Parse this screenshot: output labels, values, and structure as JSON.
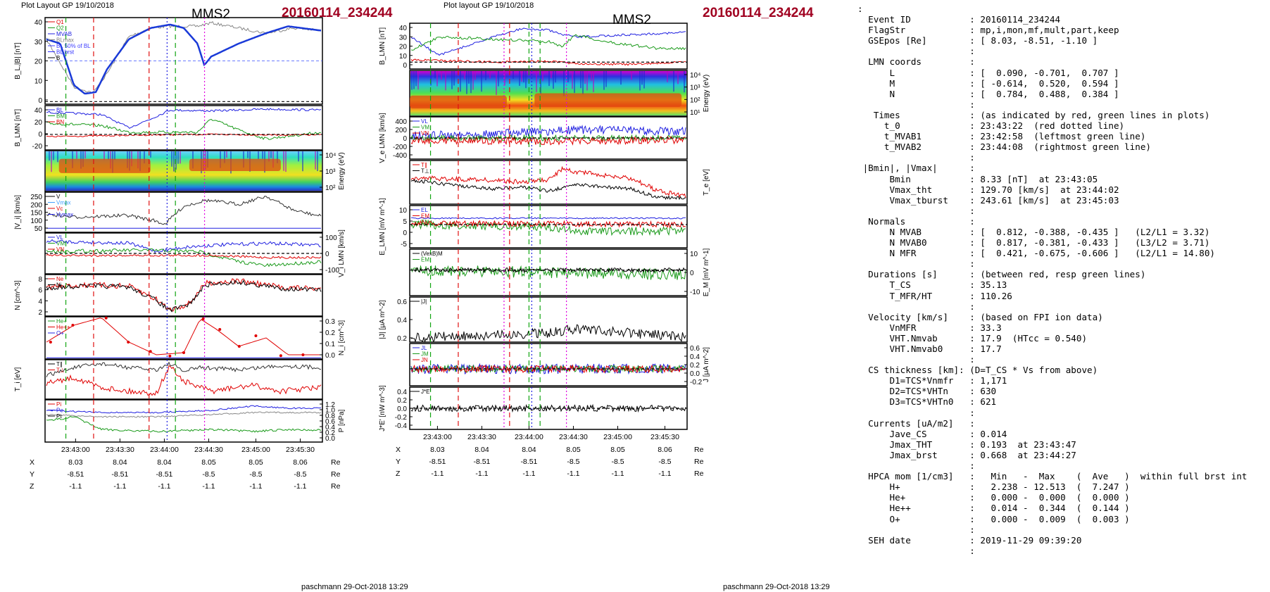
{
  "left": {
    "header": "Plot Layout GP 19/10/2018",
    "spacecraft": "MMS2",
    "event": "20160114_234244",
    "footer": "paschmann 29-Oct-2018 13:29",
    "panels": [
      {
        "id": "b_mag",
        "ylabel": "B_L,|B| [nT]",
        "ticks": [
          "40",
          "30",
          "20",
          "10",
          "0"
        ],
        "legend": [
          "Q1",
          "Q2",
          "MVAB",
          "BLmax",
          "BL 50% of BL",
          "BL brst",
          "B"
        ]
      },
      {
        "id": "b_lmn",
        "ylabel": "B_LMN [nT]",
        "ticks": [
          "40",
          "20",
          "0",
          "-20"
        ],
        "legend": [
          "BL",
          "BM",
          "BN"
        ]
      },
      {
        "id": "spec",
        "ylabel": "Energy (eV)",
        "ticks": [
          "10^4",
          "10^3",
          "10^2"
        ]
      },
      {
        "id": "vi_abs",
        "ylabel": "|V_i| [km/s]",
        "ticks": [
          "250",
          "200",
          "150",
          "100",
          "50"
        ],
        "legend": [
          "V",
          "Vmax",
          "Vc",
          "Vymax"
        ]
      },
      {
        "id": "vi_lmn",
        "ylabel": "V_i LMN [km/s]",
        "ticks": [
          "100",
          "0",
          "-100"
        ],
        "legend": [
          "VL",
          "VM",
          "VN"
        ]
      },
      {
        "id": "n",
        "ylabel": "N [cm^-3]",
        "ticks": [
          "8",
          "6",
          "4",
          "2"
        ],
        "legend": [
          "Ne",
          "Ni"
        ]
      },
      {
        "id": "ni",
        "ylabel": "N_i [cm^-3]",
        "ticks": [
          "0.3",
          "0.2",
          "0.1",
          "0.0"
        ],
        "legend": [
          "He+",
          "He++",
          "O+"
        ]
      },
      {
        "id": "ti",
        "ylabel": "T_i [eV]",
        "legend": [
          "T∥",
          "T⊥"
        ]
      },
      {
        "id": "p",
        "ylabel": "P [nPa]",
        "ticks": [
          "1.2",
          "1.0",
          "0.8",
          "0.6",
          "0.4",
          "0.2",
          "0.0"
        ],
        "legend": [
          "Pi",
          "Pe",
          "Pt"
        ]
      }
    ],
    "time_ticks": [
      "23:43:00",
      "23:43:30",
      "23:44:00",
      "23:44:30",
      "23:45:00",
      "23:45:30"
    ],
    "pos": {
      "X": [
        "8.03",
        "8.04",
        "8.04",
        "8.05",
        "8.05",
        "8.06"
      ],
      "Y": [
        "-8.51",
        "-8.51",
        "-8.51",
        "-8.5",
        "-8.5",
        "-8.5"
      ],
      "Z": [
        "-1.1",
        "-1.1",
        "-1.1",
        "-1.1",
        "-1.1",
        "-1.1"
      ],
      "unit": "Re"
    }
  },
  "mid": {
    "header": "Plot layout GP 19/10/2018",
    "spacecraft": "MMS2",
    "event": "20160114_234244",
    "footer": "paschmann 29-Oct-2018 13:29",
    "panels": [
      {
        "id": "b",
        "ylabel": "B_LMN [nT]",
        "ticks": [
          "40",
          "30",
          "20",
          "10",
          "0"
        ]
      },
      {
        "id": "spec",
        "ylabel": "Energy (eV)",
        "ticks": [
          "10^4",
          "10^3",
          "10^2",
          "10^1"
        ]
      },
      {
        "id": "ve",
        "ylabel": "V_e LMN [km/s]",
        "ticks": [
          "400",
          "200",
          "0",
          "-200",
          "-400"
        ],
        "legend": [
          "VL",
          "VM",
          "VN"
        ]
      },
      {
        "id": "te",
        "ylabel": "T_e [eV]",
        "legend": [
          "T∥",
          "T⊥"
        ]
      },
      {
        "id": "e",
        "ylabel": "E_LMN [mV m^-1]",
        "ticks": [
          "10",
          "5",
          "0",
          "-5"
        ],
        "legend": [
          "EL",
          "EM",
          "EN"
        ]
      },
      {
        "id": "em",
        "ylabel": "E_M [mV m^-1]",
        "ticks": [
          "10",
          "0",
          "-10"
        ],
        "legend": [
          "(VexB)M",
          "EM"
        ]
      },
      {
        "id": "j",
        "ylabel": "|J| [μA m^-2]",
        "ticks": [
          "0.6",
          "0.4",
          "0.2"
        ],
        "legend": [
          "|J|"
        ]
      },
      {
        "id": "jlmn",
        "ylabel": "J [μA m^-2]",
        "ticks": [
          "0.6",
          "0.4",
          "0.2",
          "0.0",
          "-0.2"
        ],
        "legend": [
          "JL",
          "JM",
          "JN"
        ]
      },
      {
        "id": "je",
        "ylabel": "J*E' [nW m^-3]",
        "ticks": [
          "0.4",
          "0.2",
          "0.0",
          "-0.2",
          "-0.4"
        ],
        "legend": [
          "J*E'"
        ]
      }
    ],
    "time_ticks": [
      "23:43:00",
      "23:43:30",
      "23:44:00",
      "23:44:30",
      "23:45:00",
      "23:45:30"
    ],
    "pos": {
      "X": [
        "8.03",
        "8.04",
        "8.04",
        "8.05",
        "8.05",
        "8.06"
      ],
      "Y": [
        "-8.51",
        "-8.51",
        "-8.51",
        "-8.5",
        "-8.5",
        "-8.5"
      ],
      "Z": [
        "-1.1",
        "-1.1",
        "-1.1",
        "-1.1",
        "-1.1",
        "-1.1"
      ],
      "unit": "Re"
    }
  },
  "info_lines": [
    ":",
    "  Event ID           : 20160114_234244",
    "  FlagStr            : mp,i,mon,mf,mult,part,keep",
    "  GSEpos [Re]        : [ 8.03, -8.51, -1.10 ]",
    "                     :",
    "  LMN coords         :",
    "      L              : [  0.090, -0.701,  0.707 ]",
    "      M              : [ -0.614,  0.520,  0.594 ]",
    "      N              : [  0.784,  0.488,  0.384 ]",
    "                     :",
    "   Times             : (as indicated by red, green lines in plots)",
    "     t_0             : 23:43:22  (red dotted line)",
    "     t_MVAB1         : 23:42:58  (leftmost green line)",
    "     t_MVAB2         : 23:44:08  (rightmost green line)",
    "                     :",
    " |Bmin|, |Vmax|      :",
    "      Bmin           : 8.33 [nT]  at 23:43:05",
    "      Vmax_tht       : 129.70 [km/s]  at 23:44:02",
    "      Vmax_tburst    : 243.61 [km/s]  at 23:45:03",
    "                     :",
    "  Normals            :",
    "      N MVAB         : [  0.812, -0.388, -0.435 ]   (L2/L1 = 3.32)",
    "      N MVAB0        : [  0.817, -0.381, -0.433 ]   (L3/L2 = 3.71)",
    "      N MFR          : [  0.421, -0.675, -0.606 ]   (L2/L1 = 14.80)",
    "                     :",
    "  Durations [s]      : (between red, resp green lines)",
    "      T_CS           : 35.13",
    "      T_MFR/HT       : 110.26",
    "                     :",
    "  Velocity [km/s]    : (based on FPI ion data)",
    "      VnMFR          : 33.3",
    "      VHT.Nmvab      : 17.9  (HTcc = 0.540)",
    "      VHT.Nmvab0     : 17.7",
    "                     :",
    "  CS thickness [km]: (D=T_CS * Vs from above)",
    "      D1=TCS*Vnmfr   : 1,171",
    "      D2=TCS*VHTn    : 630",
    "      D3=TCS*VHTn0   : 621",
    "                     :",
    "  Currents [uA/m2]   :",
    "      Jave_CS        : 0.014",
    "      Jmax_THT       : 0.193  at 23:43:47",
    "      Jmax_brst      : 0.668  at 23:44:27",
    "                     :",
    "  HPCA mom [1/cm3]   :   Min   -  Max    (  Ave   )  within full brst int",
    "      H+             :   2.238 - 12.513  (  7.247 )",
    "      He+            :   0.000 -  0.000  (  0.000 )",
    "      He++           :   0.014 -  0.344  (  0.144 )",
    "      O+             :   0.000 -  0.009  (  0.003 )",
    "                     :",
    "  SEH date           : 2019-11-29 09:39:20",
    "                     :"
  ],
  "chart_data": [
    {
      "type": "line",
      "title": "MMS2 20160114_234244",
      "x_ticks": [
        "23:43:00",
        "23:43:30",
        "23:44:00",
        "23:44:30",
        "23:45:00",
        "23:45:30"
      ],
      "panels": [
        "B_L,|B| [nT]",
        "B_LMN [nT]",
        "Energy (eV)",
        "|V_i| [km/s]",
        "V_i LMN [km/s]",
        "N [cm^-3]",
        "N_i [cm^-3]",
        "T_i [eV]",
        "P [nPa]"
      ],
      "series": [
        {
          "name": "BL",
          "panel": "B_L,|B| [nT]",
          "x": [
            "23:42:45",
            "23:43:00",
            "23:43:10",
            "23:43:30",
            "23:43:45",
            "23:44:00",
            "23:44:10",
            "23:44:30",
            "23:44:45",
            "23:45:00",
            "23:45:30",
            "23:45:50"
          ],
          "values": [
            37,
            8,
            5,
            30,
            40,
            43,
            43,
            22,
            35,
            38,
            41,
            42
          ]
        }
      ],
      "ylim": [
        0,
        45
      ]
    },
    {
      "type": "line",
      "title": "MMS2 20160114_234244",
      "x_ticks": [
        "23:43:00",
        "23:43:30",
        "23:44:00",
        "23:44:30",
        "23:45:00",
        "23:45:30"
      ],
      "panels": [
        "B_LMN [nT]",
        "Energy (eV)",
        "V_e LMN [km/s]",
        "T_e [eV]",
        "E_LMN [mV m^-1]",
        "E_M [mV m^-1]",
        "|J| [μA m^-2]",
        "J [μA m^-2]",
        "J*E' [nW m^-3]"
      ]
    }
  ]
}
